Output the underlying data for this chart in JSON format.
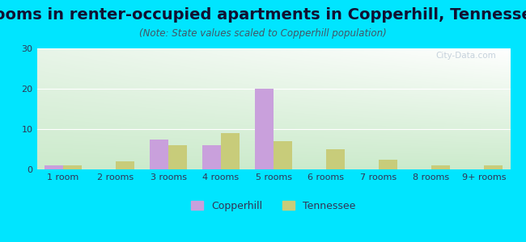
{
  "title": "Rooms in renter-occupied apartments in Copperhill, Tennessee",
  "subtitle": "(Note: State values scaled to Copperhill population)",
  "categories": [
    "1 room",
    "2 rooms",
    "3 rooms",
    "4 rooms",
    "5 rooms",
    "6 rooms",
    "7 rooms",
    "8 rooms",
    "9+ rooms"
  ],
  "copperhill": [
    1,
    0,
    7.5,
    6,
    20,
    0,
    0,
    0,
    0
  ],
  "tennessee": [
    1,
    2,
    6,
    9,
    7,
    5,
    2.5,
    1,
    1
  ],
  "copperhill_color": "#c9a0dc",
  "tennessee_color": "#c8cc7a",
  "bg_outer": "#00e5ff",
  "ylim": [
    0,
    30
  ],
  "yticks": [
    0,
    10,
    20,
    30
  ],
  "bar_width": 0.35,
  "title_fontsize": 14,
  "subtitle_fontsize": 8.5,
  "tick_fontsize": 8,
  "legend_fontsize": 9,
  "watermark_text": "City-Data.com"
}
